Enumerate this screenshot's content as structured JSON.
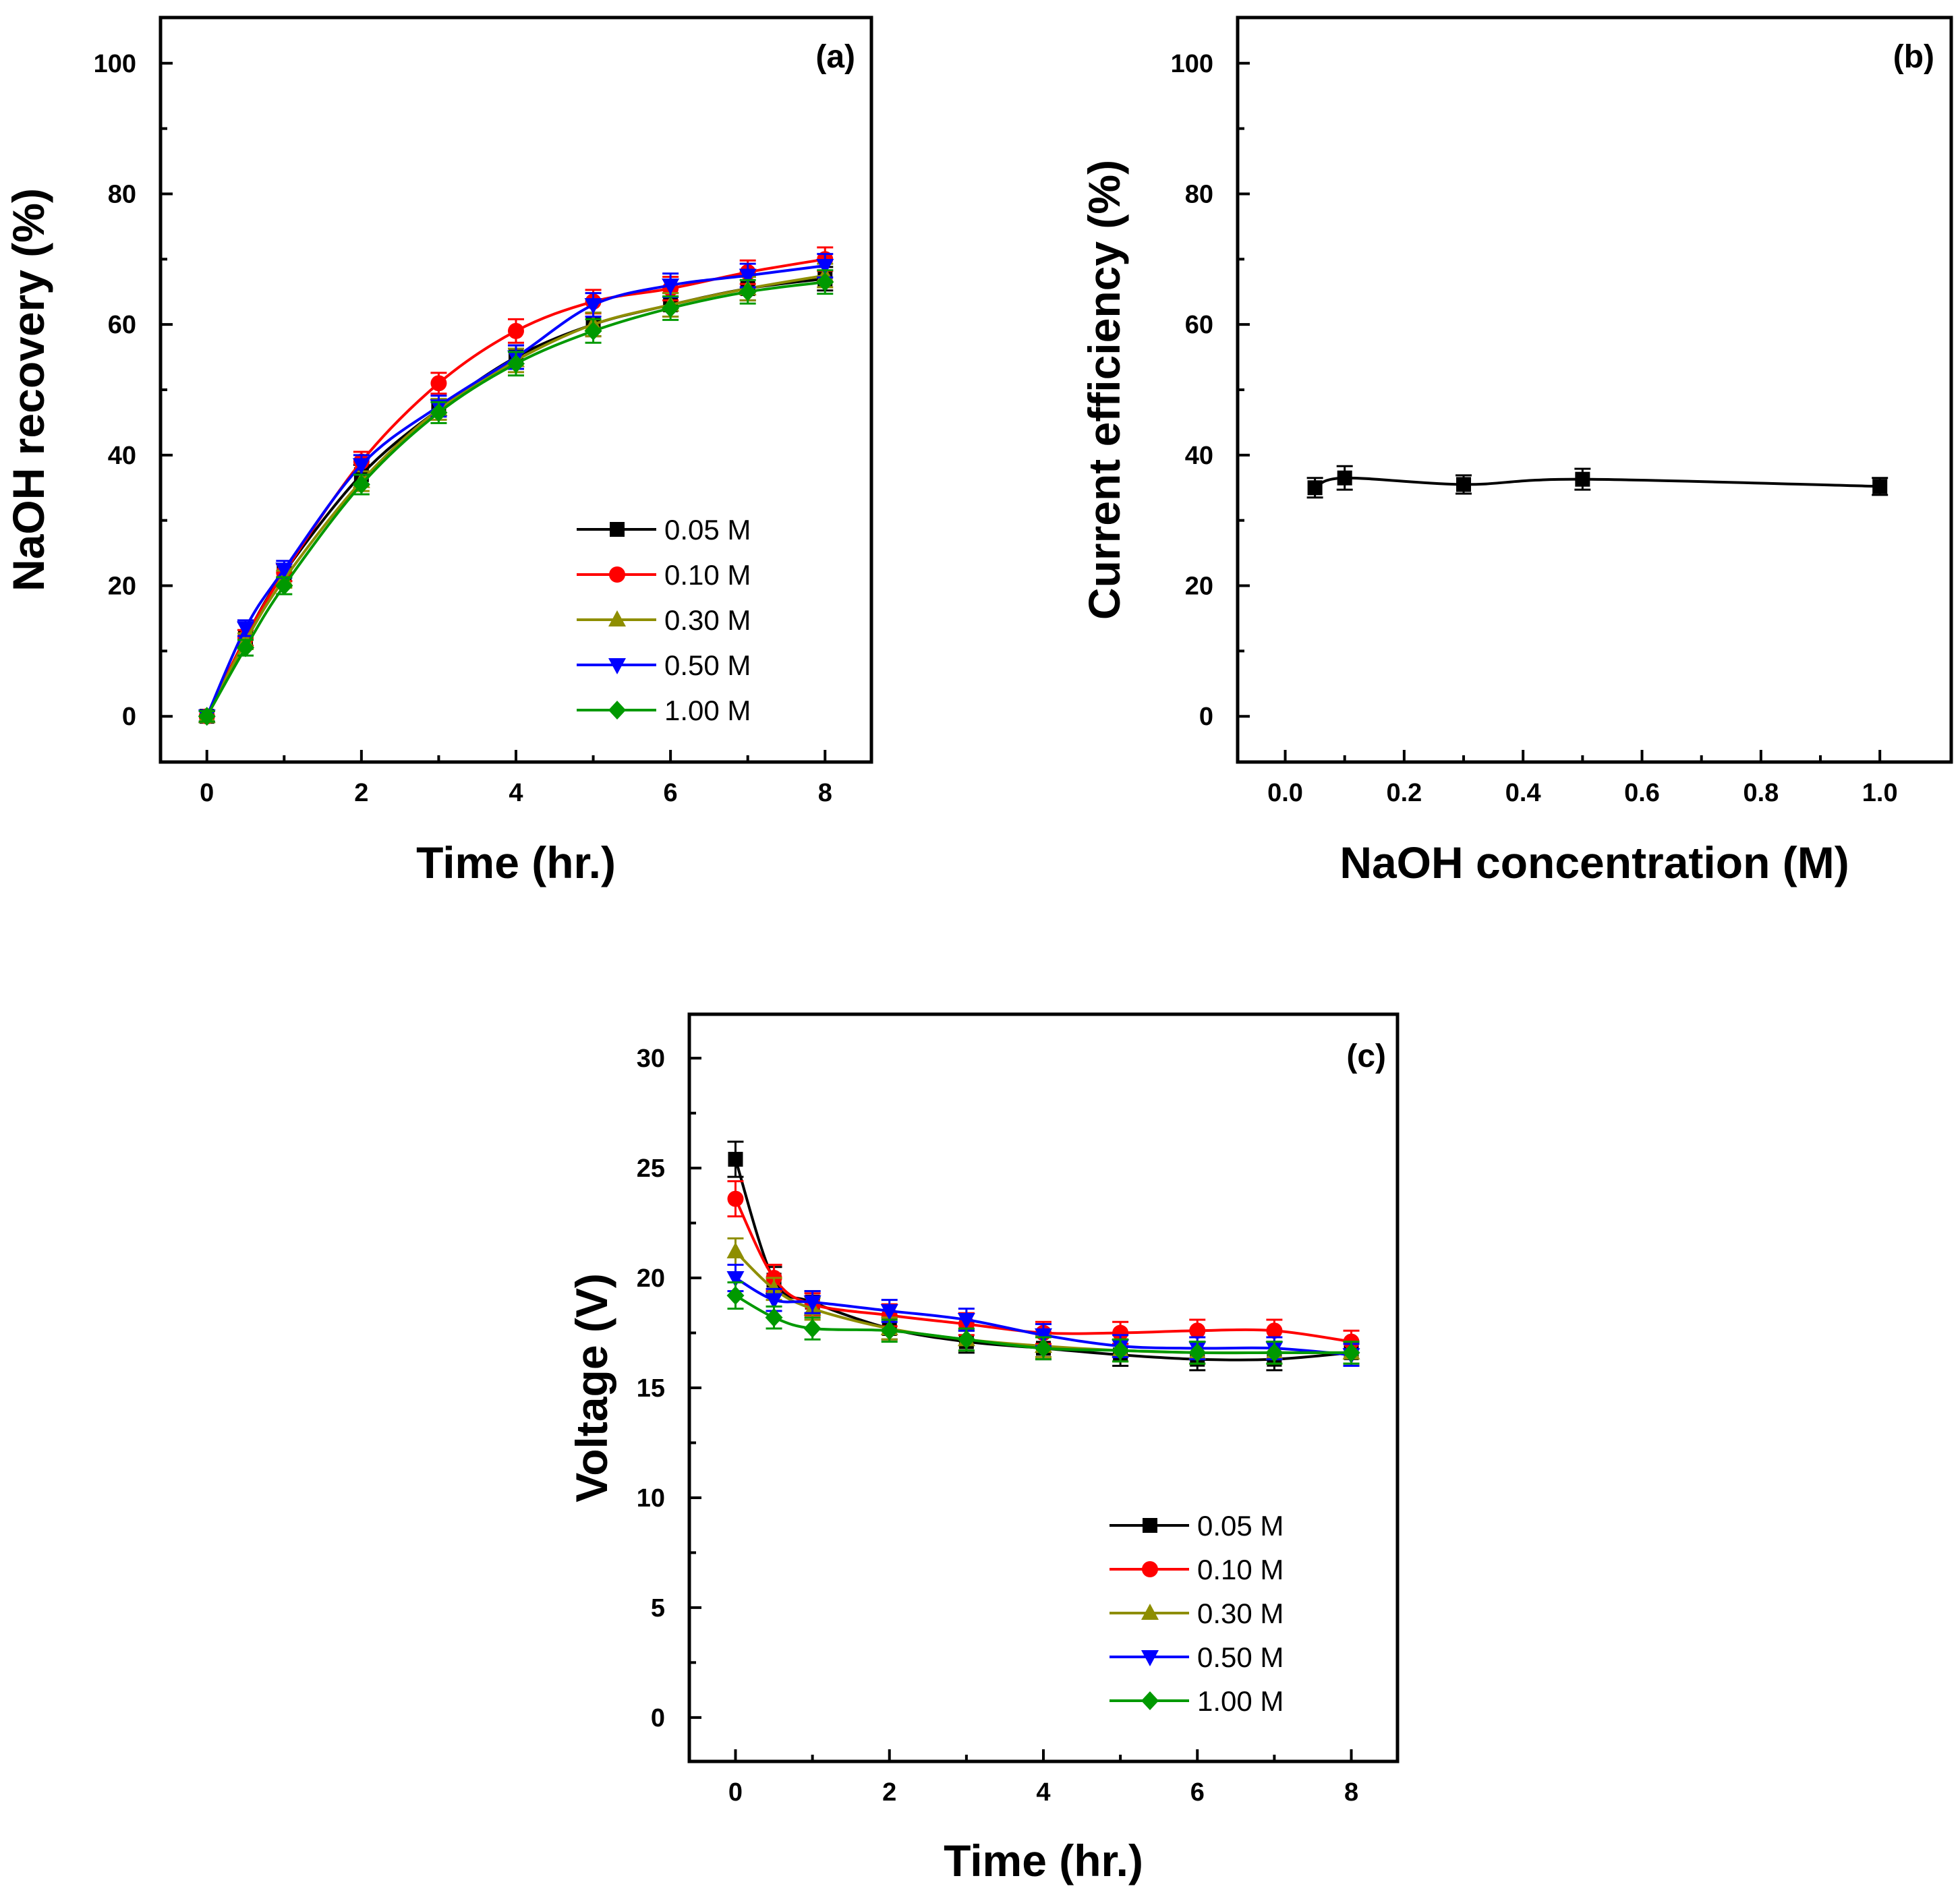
{
  "chart_data": [
    {
      "panel_label": "(a)",
      "type": "line",
      "xlabel": "Time (hr.)",
      "ylabel": "NaOH recovery (%)",
      "xlim": [
        -0.6,
        8.6
      ],
      "ylim": [
        -7,
        107
      ],
      "xticks": [
        0,
        2,
        4,
        6,
        8
      ],
      "yticks": [
        0,
        20,
        40,
        60,
        80,
        100
      ],
      "legend_position": "bottom-right",
      "x": [
        0,
        0.5,
        1,
        2,
        3,
        4,
        5,
        6,
        7,
        8
      ],
      "series": [
        {
          "name": "0.05 M",
          "color": "#000000",
          "marker": "square",
          "values": [
            0,
            12,
            22,
            37,
            47,
            55,
            60,
            63,
            65.5,
            67
          ],
          "errors": [
            0.8,
            1.2,
            1.3,
            1.5,
            1.6,
            1.8,
            1.8,
            1.8,
            1.8,
            1.8
          ]
        },
        {
          "name": "0.10 M",
          "color": "#ff0000",
          "marker": "circle",
          "values": [
            0,
            12,
            22,
            39,
            51,
            59,
            63.5,
            65.5,
            68,
            70
          ],
          "errors": [
            0.8,
            1.2,
            1.3,
            1.5,
            1.6,
            1.8,
            1.8,
            1.8,
            1.8,
            1.8
          ]
        },
        {
          "name": "0.30 M",
          "color": "#8e8e00",
          "marker": "triangle-up",
          "values": [
            0,
            11.5,
            21,
            36,
            47,
            54.5,
            60,
            63,
            65.5,
            67.5
          ],
          "errors": [
            0.8,
            1.2,
            1.3,
            1.5,
            1.6,
            1.8,
            1.8,
            1.8,
            1.8,
            1.8
          ]
        },
        {
          "name": "0.50 M",
          "color": "#0000ff",
          "marker": "triangle-down",
          "values": [
            0,
            13.5,
            22.5,
            38.5,
            47.5,
            55,
            63,
            66,
            67.5,
            69
          ],
          "errors": [
            0.8,
            1.2,
            1.3,
            1.5,
            1.6,
            1.8,
            1.8,
            1.8,
            1.8,
            1.8
          ]
        },
        {
          "name": "1.00 M",
          "color": "#009900",
          "marker": "diamond",
          "values": [
            0,
            10.5,
            20,
            35.5,
            46.5,
            54,
            59,
            62.5,
            65,
            66.5
          ],
          "errors": [
            0.8,
            1.2,
            1.3,
            1.5,
            1.6,
            1.8,
            1.8,
            1.8,
            1.8,
            1.8
          ]
        }
      ]
    },
    {
      "panel_label": "(b)",
      "type": "line",
      "xlabel": "NaOH concentration (M)",
      "ylabel": "Current efficiency (%)",
      "xlim": [
        -0.08,
        1.12
      ],
      "ylim": [
        -7,
        107
      ],
      "xticks": [
        "0.0",
        "0.2",
        "0.4",
        "0.6",
        "0.8",
        "1.0"
      ],
      "yticks": [
        0,
        20,
        40,
        60,
        80,
        100
      ],
      "series": [
        {
          "color": "#000000",
          "marker": "square",
          "x": [
            0.05,
            0.1,
            0.3,
            0.5,
            1.0
          ],
          "values": [
            35,
            36.5,
            35.5,
            36.3,
            35.2
          ],
          "errors": [
            1.5,
            1.8,
            1.4,
            1.6,
            1.3
          ]
        }
      ]
    },
    {
      "panel_label": "(c)",
      "type": "line",
      "xlabel": "Time (hr.)",
      "ylabel": "Voltage (V)",
      "xlim": [
        -0.6,
        8.6
      ],
      "ylim": [
        -2,
        32
      ],
      "xticks": [
        0,
        2,
        4,
        6,
        8
      ],
      "yticks": [
        0,
        5,
        10,
        15,
        20,
        25,
        30
      ],
      "legend_position": "bottom-right",
      "x": [
        0,
        0.5,
        1,
        2,
        3,
        4,
        5,
        6,
        7,
        8
      ],
      "series": [
        {
          "name": "0.05 M",
          "color": "#000000",
          "marker": "square",
          "values": [
            25.4,
            19.9,
            18.9,
            17.7,
            17.1,
            16.8,
            16.5,
            16.3,
            16.3,
            16.6
          ],
          "errors": [
            0.8,
            0.6,
            0.5,
            0.5,
            0.5,
            0.5,
            0.5,
            0.5,
            0.5,
            0.5
          ]
        },
        {
          "name": "0.10 M",
          "color": "#ff0000",
          "marker": "circle",
          "values": [
            23.6,
            20.0,
            18.8,
            18.3,
            17.9,
            17.5,
            17.5,
            17.6,
            17.6,
            17.1
          ],
          "errors": [
            0.8,
            0.6,
            0.5,
            0.5,
            0.5,
            0.5,
            0.5,
            0.5,
            0.5,
            0.5
          ]
        },
        {
          "name": "0.30 M",
          "color": "#8e8e00",
          "marker": "triangle-up",
          "values": [
            21.2,
            19.5,
            18.6,
            17.7,
            17.2,
            16.9,
            16.7,
            16.6,
            16.6,
            16.6
          ],
          "errors": [
            0.6,
            0.5,
            0.5,
            0.5,
            0.5,
            0.5,
            0.5,
            0.5,
            0.5,
            0.5
          ]
        },
        {
          "name": "0.50 M",
          "color": "#0000ff",
          "marker": "triangle-down",
          "values": [
            20.0,
            19.0,
            18.9,
            18.5,
            18.1,
            17.4,
            16.9,
            16.8,
            16.8,
            16.5
          ],
          "errors": [
            0.6,
            0.5,
            0.5,
            0.5,
            0.5,
            0.5,
            0.5,
            0.5,
            0.5,
            0.5
          ]
        },
        {
          "name": "1.00 M",
          "color": "#009900",
          "marker": "diamond",
          "values": [
            19.2,
            18.2,
            17.7,
            17.6,
            17.2,
            16.8,
            16.7,
            16.6,
            16.6,
            16.6
          ],
          "errors": [
            0.6,
            0.5,
            0.5,
            0.5,
            0.5,
            0.5,
            0.5,
            0.5,
            0.5,
            0.5
          ]
        }
      ]
    }
  ]
}
